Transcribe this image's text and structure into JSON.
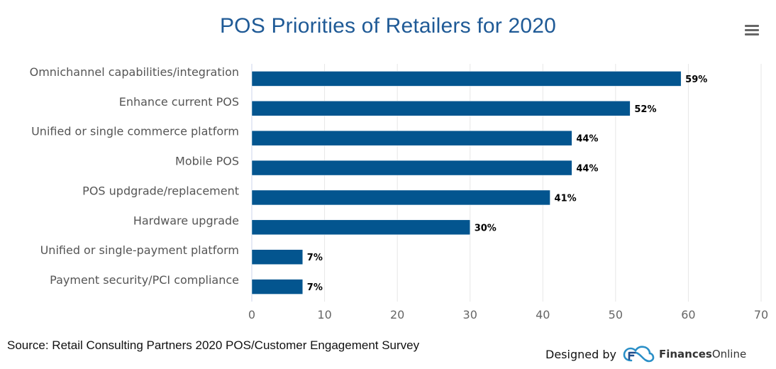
{
  "header": {
    "title": "POS Priorities of Retailers for 2020",
    "menu_icon": "hamburger-menu-icon"
  },
  "chart_data": {
    "type": "bar",
    "orientation": "horizontal",
    "title": "POS Priorities of Retailers for 2020",
    "categories": [
      "Omnichannel capabilities/integration",
      "Enhance current POS",
      "Unified or single commerce platform",
      "Mobile POS",
      "POS updgrade/replacement",
      "Hardware upgrade",
      "Unified or single-payment platform",
      "Payment security/PCI compliance"
    ],
    "values": [
      59,
      52,
      44,
      44,
      41,
      30,
      7,
      7
    ],
    "data_labels": [
      "59%",
      "52%",
      "44%",
      "44%",
      "41%",
      "30%",
      "7%",
      "7%"
    ],
    "xlabel": "",
    "ylabel": "",
    "xlim": [
      0,
      70
    ],
    "xticks": [
      0,
      10,
      20,
      30,
      40,
      50,
      60,
      70
    ],
    "grid": true,
    "legend": "none",
    "bar_color": "#03558f",
    "grid_color": "#e6e6e6"
  },
  "footer": {
    "source": "Source: Retail Consulting Partners 2020 POS/Customer Engagement Survey",
    "designed_by": "Designed by",
    "brand_bold": "Finances",
    "brand_regular": "Online",
    "logo_icon": "financesonline-cloud-logo-icon"
  }
}
